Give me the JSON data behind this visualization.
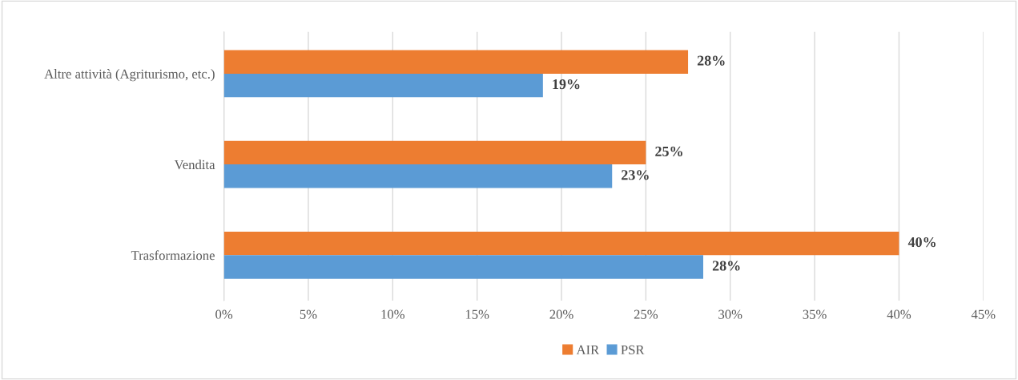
{
  "chart_data": {
    "type": "bar",
    "orientation": "horizontal",
    "categories": [
      "Altre attività (Agriturismo, etc.)",
      "Vendita",
      "Trasformazione"
    ],
    "series": [
      {
        "name": "AIR",
        "color": "#ed7d31",
        "values": [
          27.5,
          25,
          40
        ],
        "value_labels": [
          "28%",
          "25%",
          "40%"
        ]
      },
      {
        "name": "PSR",
        "color": "#5b9bd5",
        "values": [
          18.9,
          23,
          28.4
        ],
        "value_labels": [
          "19%",
          "23%",
          "28%"
        ]
      }
    ],
    "xlim": [
      0,
      45
    ],
    "xticks": [
      {
        "value": 0,
        "label": "0%"
      },
      {
        "value": 5,
        "label": "5%"
      },
      {
        "value": 10,
        "label": "10%"
      },
      {
        "value": 15,
        "label": "15%"
      },
      {
        "value": 20,
        "label": "20%"
      },
      {
        "value": 25,
        "label": "25%"
      },
      {
        "value": 30,
        "label": "30%"
      },
      {
        "value": 35,
        "label": "35%"
      },
      {
        "value": 40,
        "label": "40%"
      },
      {
        "value": 45,
        "label": "45%"
      }
    ],
    "grid": "x",
    "legend": "bottom"
  }
}
